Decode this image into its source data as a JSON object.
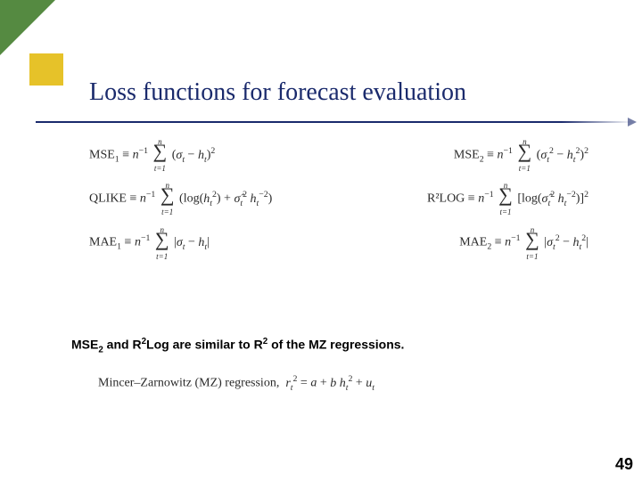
{
  "colors": {
    "title": "#1a2a6c",
    "line": "#1a2a6c",
    "green": "#558a41",
    "yellow": "#e6c229",
    "bg": "#ffffff",
    "text": "#000000",
    "formula": "#2a2a2a"
  },
  "title": "Loss functions for forecast evaluation",
  "formulas": {
    "mse1_label": "MSE",
    "mse1_sub": "1",
    "mse1_body": " ≡ n⁻¹ Σ (σₜ − hₜ)²",
    "mse2_label": "MSE",
    "mse2_sub": "2",
    "mse2_body": " ≡ n⁻¹ Σ (σₜ² − hₜ²)²",
    "qlike_label": "QLIKE",
    "qlike_body": " ≡ n⁻¹ Σ (log(hₜ²) + σ̂ₜ² hₜ⁻²)",
    "r2log_label": "R²LOG",
    "r2log_body": " ≡ n⁻¹ Σ [log(σ̂ₜ² hₜ⁻²)]²",
    "mae1_label": "MAE",
    "mae1_sub": "1",
    "mae1_body": " ≡ n⁻¹ Σ |σₜ − hₜ|",
    "mae2_label": "MAE",
    "mae2_sub": "2",
    "mae2_body": " ≡ n⁻¹ Σ |σₜ² − hₜ²|",
    "sum_upper": "n",
    "sum_lower": "t=1"
  },
  "note_parts": {
    "a": "MSE",
    "a_sub": "2",
    "b": " and R",
    "b_sup": "2",
    "c": "Log are similar to R",
    "c_sup": "2",
    "d": " of the MZ regressions."
  },
  "mz": "Mincer–Zarnowitz (MZ) regression,  rₜ² = a + b hₜ² + uₜ",
  "page": "49"
}
